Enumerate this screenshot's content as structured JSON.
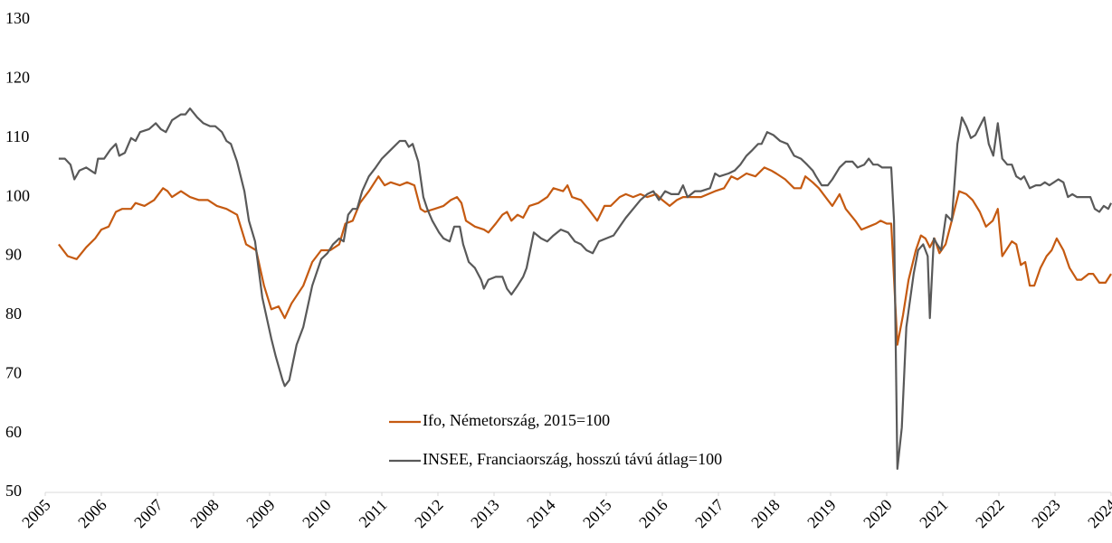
{
  "chart_data": {
    "type": "line",
    "xlim": [
      2005,
      2024
    ],
    "xticks": [
      2005,
      2006,
      2007,
      2008,
      2009,
      2010,
      2011,
      2012,
      2013,
      2014,
      2015,
      2016,
      2017,
      2018,
      2019,
      2020,
      2021,
      2022,
      2023,
      2024
    ],
    "ylim": [
      50,
      130
    ],
    "yticks": [
      50,
      60,
      70,
      80,
      90,
      100,
      110,
      120,
      130
    ],
    "grid": false,
    "series": [
      {
        "name": "Ifo, Németország, 2015=100",
        "color": "#c55a11",
        "x": [
          2005.24,
          2005.4,
          2005.56,
          2005.73,
          2005.89,
          2006.0,
          2006.13,
          2006.26,
          2006.37,
          2006.53,
          2006.61,
          2006.77,
          2006.94,
          2007.1,
          2007.18,
          2007.26,
          2007.42,
          2007.58,
          2007.74,
          2007.9,
          2008.06,
          2008.23,
          2008.42,
          2008.58,
          2008.76,
          2008.9,
          2009.03,
          2009.16,
          2009.27,
          2009.39,
          2009.6,
          2009.76,
          2009.92,
          2010.08,
          2010.24,
          2010.35,
          2010.48,
          2010.61,
          2010.77,
          2010.94,
          2011.05,
          2011.16,
          2011.32,
          2011.45,
          2011.58,
          2011.69,
          2011.77,
          2011.94,
          2012.1,
          2012.23,
          2012.34,
          2012.42,
          2012.5,
          2012.66,
          2012.82,
          2012.9,
          2013.03,
          2013.15,
          2013.23,
          2013.31,
          2013.42,
          2013.52,
          2013.63,
          2013.79,
          2013.95,
          2014.06,
          2014.23,
          2014.31,
          2014.39,
          2014.55,
          2014.68,
          2014.76,
          2014.84,
          2014.97,
          2015.08,
          2015.24,
          2015.35,
          2015.48,
          2015.61,
          2015.73,
          2015.89,
          2016.0,
          2016.13,
          2016.26,
          2016.37,
          2016.53,
          2016.69,
          2016.94,
          2017.1,
          2017.23,
          2017.34,
          2017.5,
          2017.66,
          2017.82,
          2017.94,
          2018.03,
          2018.19,
          2018.35,
          2018.47,
          2018.55,
          2018.68,
          2018.79,
          2018.95,
          2019.03,
          2019.16,
          2019.27,
          2019.44,
          2019.55,
          2019.68,
          2019.81,
          2019.89,
          2020.0,
          2020.08,
          2020.19,
          2020.29,
          2020.39,
          2020.52,
          2020.61,
          2020.69,
          2020.77,
          2020.85,
          2020.94,
          2021.05,
          2021.16,
          2021.29,
          2021.42,
          2021.53,
          2021.66,
          2021.77,
          2021.89,
          2021.98,
          2022.06,
          2022.23,
          2022.31,
          2022.39,
          2022.47,
          2022.55,
          2022.63,
          2022.74,
          2022.85,
          2022.94,
          2023.03,
          2023.15,
          2023.26,
          2023.39,
          2023.47,
          2023.6,
          2023.68,
          2023.79,
          2023.9,
          2024.0
        ],
        "values": [
          92,
          90,
          89.5,
          91.5,
          93,
          94.5,
          95,
          97.5,
          98,
          98,
          99,
          98.5,
          99.5,
          101.5,
          101,
          100,
          101,
          100,
          99.5,
          99.5,
          98.5,
          98,
          97,
          92,
          91,
          85,
          81,
          81.5,
          79.5,
          82,
          85,
          89,
          91,
          91,
          92,
          95.5,
          96,
          99,
          101,
          103.5,
          102,
          102.5,
          102,
          102.5,
          102,
          98,
          97.5,
          98,
          98.5,
          99.5,
          100,
          99,
          96,
          95,
          94.5,
          94,
          95.5,
          97,
          97.5,
          96,
          97,
          96.5,
          98.5,
          99,
          100,
          101.5,
          101,
          102,
          100,
          99.5,
          98,
          97,
          96,
          98.5,
          98.5,
          100,
          100.5,
          100,
          100.5,
          100,
          100.5,
          99.5,
          98.5,
          99.5,
          100,
          100,
          100,
          101,
          101.5,
          103.5,
          103,
          104,
          103.5,
          105,
          104.5,
          104,
          103,
          101.5,
          101.5,
          103.5,
          102.5,
          101.5,
          99.5,
          98.5,
          100.5,
          98,
          96,
          94.5,
          95,
          95.5,
          96,
          95.5,
          95.5,
          75,
          80,
          86,
          91,
          93.5,
          93,
          91.5,
          93,
          90.5,
          92,
          96,
          101,
          100.5,
          99.5,
          97.5,
          95,
          96,
          98,
          90,
          92.5,
          92,
          88.5,
          89,
          85,
          85,
          88,
          90,
          91,
          93,
          91,
          88,
          86,
          86,
          87,
          87,
          85.5,
          85.5,
          87
        ]
      },
      {
        "name": "INSEE, Franciaország, hosszú távú átlag=100",
        "color": "#595959",
        "x": [
          2005.24,
          2005.35,
          2005.45,
          2005.52,
          2005.61,
          2005.73,
          2005.81,
          2005.89,
          2005.94,
          2006.05,
          2006.16,
          2006.26,
          2006.32,
          2006.42,
          2006.53,
          2006.61,
          2006.69,
          2006.85,
          2006.97,
          2007.06,
          2007.15,
          2007.26,
          2007.42,
          2007.5,
          2007.58,
          2007.71,
          2007.82,
          2007.94,
          2008.03,
          2008.15,
          2008.23,
          2008.31,
          2008.42,
          2008.55,
          2008.63,
          2008.74,
          2008.87,
          2009.03,
          2009.11,
          2009.23,
          2009.27,
          2009.35,
          2009.48,
          2009.6,
          2009.76,
          2009.92,
          2010.03,
          2010.13,
          2010.24,
          2010.32,
          2010.4,
          2010.48,
          2010.56,
          2010.65,
          2010.77,
          2010.89,
          2011.0,
          2011.16,
          2011.32,
          2011.42,
          2011.48,
          2011.55,
          2011.65,
          2011.74,
          2011.81,
          2011.9,
          2012.02,
          2012.1,
          2012.21,
          2012.29,
          2012.39,
          2012.45,
          2012.55,
          2012.66,
          2012.77,
          2012.82,
          2012.9,
          2013.03,
          2013.15,
          2013.23,
          2013.31,
          2013.42,
          2013.52,
          2013.58,
          2013.71,
          2013.84,
          2013.95,
          2014.06,
          2014.19,
          2014.32,
          2014.44,
          2014.55,
          2014.65,
          2014.76,
          2014.87,
          2015.0,
          2015.13,
          2015.24,
          2015.35,
          2015.48,
          2015.61,
          2015.73,
          2015.84,
          2015.94,
          2016.05,
          2016.16,
          2016.29,
          2016.37,
          2016.45,
          2016.58,
          2016.69,
          2016.85,
          2016.94,
          2017.02,
          2017.18,
          2017.29,
          2017.39,
          2017.5,
          2017.61,
          2017.71,
          2017.77,
          2017.87,
          2017.98,
          2018.1,
          2018.23,
          2018.35,
          2018.47,
          2018.58,
          2018.68,
          2018.74,
          2018.84,
          2018.95,
          2019.03,
          2019.16,
          2019.27,
          2019.39,
          2019.48,
          2019.6,
          2019.68,
          2019.76,
          2019.84,
          2019.92,
          2020.0,
          2020.08,
          2020.13,
          2020.19,
          2020.27,
          2020.35,
          2020.48,
          2020.56,
          2020.65,
          2020.73,
          2020.77,
          2020.84,
          2020.9,
          2020.97,
          2021.06,
          2021.16,
          2021.26,
          2021.34,
          2021.42,
          2021.5,
          2021.58,
          2021.66,
          2021.74,
          2021.82,
          2021.9,
          2021.98,
          2022.06,
          2022.15,
          2022.23,
          2022.31,
          2022.39,
          2022.45,
          2022.55,
          2022.66,
          2022.74,
          2022.82,
          2022.9,
          2022.98,
          2023.06,
          2023.15,
          2023.23,
          2023.31,
          2023.39,
          2023.52,
          2023.63,
          2023.71,
          2023.79,
          2023.87,
          2023.95,
          2024.0
        ],
        "values": [
          106.5,
          106.5,
          105.5,
          103,
          104.5,
          105,
          104.5,
          104,
          106.5,
          106.5,
          108,
          109,
          107,
          107.5,
          110,
          109.5,
          111,
          111.5,
          112.5,
          111.5,
          111,
          113,
          114,
          114,
          115,
          113.5,
          112.5,
          112,
          112,
          111,
          109.5,
          109,
          106,
          101,
          96,
          92.5,
          83,
          76,
          73,
          69,
          68,
          69,
          75,
          78,
          85,
          89.5,
          90.5,
          92,
          93,
          92.5,
          97,
          98,
          98,
          101,
          103.5,
          105,
          106.5,
          108,
          109.5,
          109.5,
          108.5,
          109,
          106,
          100,
          98,
          96,
          94,
          93,
          92.5,
          95,
          95,
          92,
          89,
          88,
          86,
          84.5,
          86,
          86.5,
          86.5,
          84.5,
          83.5,
          85,
          86.5,
          88,
          94,
          93,
          92.5,
          93.5,
          94.5,
          94,
          92.5,
          92,
          91,
          90.5,
          92.5,
          93,
          93.5,
          95,
          96.5,
          98,
          99.5,
          100.5,
          101,
          99.5,
          101,
          100.5,
          100.5,
          102,
          100,
          101,
          101,
          101.5,
          104,
          103.5,
          104,
          104.5,
          105.5,
          107,
          108,
          109,
          109,
          111,
          110.5,
          109.5,
          109,
          107,
          106.5,
          105.5,
          104.5,
          103.5,
          102,
          102,
          103,
          105,
          106,
          106,
          105,
          105.5,
          106.5,
          105.5,
          105.5,
          105,
          105,
          105,
          96,
          54,
          61,
          78,
          87,
          91,
          92,
          90,
          79.5,
          93,
          92,
          91,
          97,
          96,
          109,
          113.5,
          112,
          110,
          110.5,
          112,
          113.5,
          109,
          107,
          112.5,
          106.5,
          105.5,
          105.5,
          103.5,
          103,
          103.5,
          101.5,
          102,
          102,
          102.5,
          102,
          102.5,
          103,
          102.5,
          100,
          100.5,
          100,
          100,
          100,
          98,
          97.5,
          98.5,
          98,
          99
        ]
      }
    ]
  }
}
